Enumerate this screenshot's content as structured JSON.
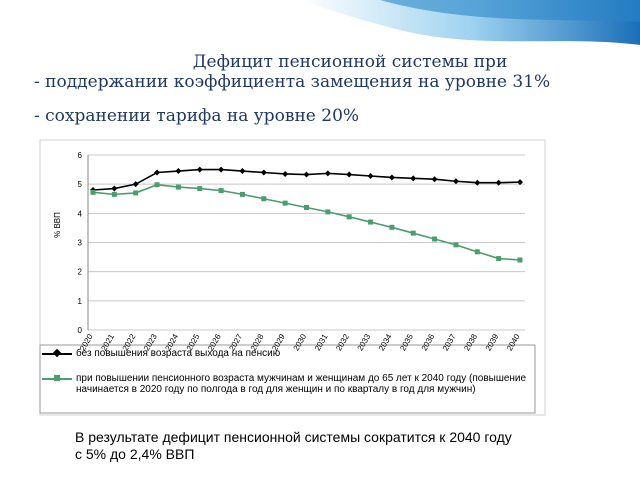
{
  "header": {
    "title": "Дефицит пенсионной системы при",
    "lines": [
      "- поддержании коэффициента замещения на уровне 31%",
      "- сохранении тарифа на уровне 20%"
    ]
  },
  "chart_data": {
    "type": "line",
    "y_label": "% ВВП",
    "categories": [
      "2020",
      "2021",
      "2022",
      "2023",
      "2024",
      "2025",
      "2026",
      "2027",
      "2028",
      "2029",
      "2030",
      "2031",
      "2032",
      "2033",
      "2034",
      "2035",
      "2036",
      "2037",
      "2038",
      "2039",
      "2040"
    ],
    "series": [
      {
        "name": "без повышения возраста выхода на пенсию",
        "color": "#000000",
        "values": [
          4.8,
          4.85,
          5.0,
          5.4,
          5.45,
          5.5,
          5.5,
          5.45,
          5.4,
          5.35,
          5.33,
          5.37,
          5.33,
          5.28,
          5.23,
          5.2,
          5.17,
          5.1,
          5.05,
          5.05,
          5.07
        ]
      },
      {
        "name": "при повышении пенсионного возраста мужчинам и женщинам до 65 лет к 2040 году (повышение начинается в 2020 году по полгода в год для женщин и по кварталу в год для мужчин)",
        "color": "#4a9e6e",
        "values": [
          4.72,
          4.65,
          4.7,
          4.98,
          4.9,
          4.85,
          4.78,
          4.65,
          4.5,
          4.35,
          4.2,
          4.05,
          3.88,
          3.7,
          3.52,
          3.32,
          3.12,
          2.92,
          2.68,
          2.45,
          2.4
        ]
      }
    ],
    "ylim": [
      0,
      6
    ],
    "yticks": [
      0,
      1,
      2,
      3,
      4,
      5,
      6
    ],
    "grid": true
  },
  "conclusion": [
    "В результате дефицит пенсионной системы сократится к 2040 году",
    "с 5% до 2,4% ВВП"
  ]
}
